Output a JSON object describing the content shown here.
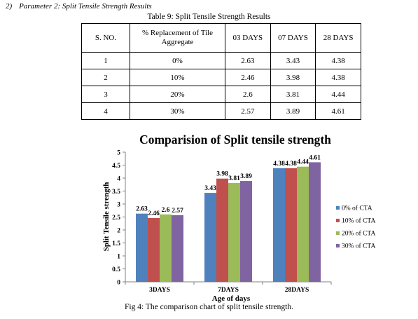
{
  "heading": {
    "number": "2)",
    "text": "Parameter 2: Split Tensile Strength Results"
  },
  "table": {
    "caption": "Table 9: Split Tensile Strength Results",
    "headers": [
      "S. NO.",
      "% Replacement of Tile Aggregate",
      "03 DAYS",
      "07 DAYS",
      "28 DAYS"
    ],
    "rows": [
      [
        "1",
        "0%",
        "2.63",
        "3.43",
        "4.38"
      ],
      [
        "2",
        "10%",
        "2.46",
        "3.98",
        "4.38"
      ],
      [
        "3",
        "20%",
        "2.6",
        "3.81",
        "4.44"
      ],
      [
        "4",
        "30%",
        "2.57",
        "3.89",
        "4.61"
      ]
    ]
  },
  "chart_data": {
    "type": "bar",
    "title": "Comparision of Split tensile strength",
    "xlabel": "Age of days",
    "ylabel": "Split Tensile strength",
    "categories": [
      "3DAYS",
      "7DAYS",
      "28DAYS"
    ],
    "ylim": [
      0,
      5
    ],
    "yticks": [
      "0",
      "0.5",
      "1",
      "1.5",
      "2",
      "2.5",
      "3",
      "3.5",
      "4",
      "4.5",
      "5"
    ],
    "grid": false,
    "legend_position": "right",
    "series": [
      {
        "name": "0% of CTA",
        "color": "#4f81bd",
        "values": [
          2.63,
          3.43,
          4.38
        ],
        "labels": [
          "2.63",
          "3.43",
          "4.38"
        ]
      },
      {
        "name": "10% of CTA",
        "color": "#c0504d",
        "values": [
          2.46,
          3.98,
          4.38
        ],
        "labels": [
          "2.46",
          "3.98",
          "4.38"
        ]
      },
      {
        "name": "20% of CTA",
        "color": "#9bbb59",
        "values": [
          2.6,
          3.81,
          4.44
        ],
        "labels": [
          "2.6",
          "3.81",
          "4.44"
        ]
      },
      {
        "name": "30% of CTA",
        "color": "#8064a2",
        "values": [
          2.57,
          3.89,
          4.61
        ],
        "labels": [
          "2.57",
          "3.89",
          "4.61"
        ]
      }
    ]
  },
  "figure_caption": "Fig 4: The comparison chart of split tensile strength."
}
